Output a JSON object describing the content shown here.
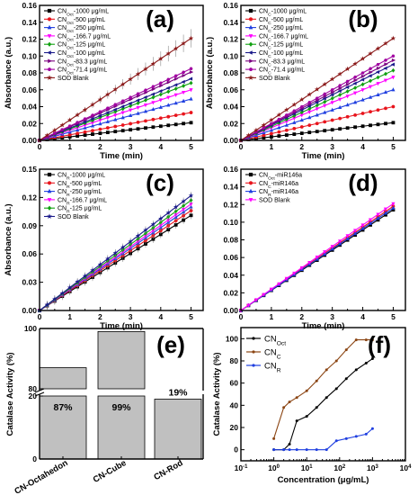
{
  "chart_data": [
    {
      "panel": "(a)",
      "type": "line",
      "xlabel": "Time (min)",
      "ylabel": "Absorbance (a.u.)",
      "xlim": [
        0,
        5.4
      ],
      "ylim": [
        0,
        0.16
      ],
      "xticks": [
        "0",
        "1",
        "2",
        "3",
        "4",
        "5"
      ],
      "yticks": [
        "0.00",
        "0.02",
        "0.04",
        "0.06",
        "0.08",
        "0.10",
        "0.12",
        "0.14",
        "0.16"
      ],
      "x_step": 0.25,
      "legend_position": "top-left",
      "series": [
        {
          "name": "CN",
          "name_sub": "Oct",
          "name_rest": "-1000 μg/mL",
          "marker": "square",
          "color": "#000000",
          "end": 0.021
        },
        {
          "name": "CN",
          "name_sub": "Oct",
          "name_rest": "-500 μg/mL",
          "marker": "circle",
          "color": "#e8141c",
          "end": 0.033
        },
        {
          "name": "CN",
          "name_sub": "Oct",
          "name_rest": "-250 μg/mL",
          "marker": "triangle",
          "color": "#1f3fe0",
          "end": 0.049
        },
        {
          "name": "CN",
          "name_sub": "Oct",
          "name_rest": "-166.7 μg/mL",
          "marker": "tri-down",
          "color": "#ff00ff",
          "end": 0.06
        },
        {
          "name": "CN",
          "name_sub": "Oct",
          "name_rest": "-125 μg/mL",
          "marker": "diamond",
          "color": "#10a010",
          "end": 0.068
        },
        {
          "name": "CN",
          "name_sub": "Oct",
          "name_rest": "-100 μg/mL",
          "marker": "tri-left",
          "color": "#1a1a8a",
          "end": 0.073
        },
        {
          "name": "CN",
          "name_sub": "Oct",
          "name_rest": "-83.3 μg/mL",
          "marker": "tri-right",
          "color": "#7a0080",
          "end": 0.081
        },
        {
          "name": "CN",
          "name_sub": "Oct",
          "name_rest": "-71.4 μg/mL",
          "marker": "hexagon",
          "color": "#a000a0",
          "end": 0.085
        },
        {
          "name": "SOD Blank",
          "marker": "star",
          "color": "#8b1a1a",
          "end": 0.121
        }
      ]
    },
    {
      "panel": "(b)",
      "type": "line",
      "xlabel": "Time (min)",
      "ylabel": "Absorbance (a.u.)",
      "xlim": [
        0,
        5.4
      ],
      "ylim": [
        0,
        0.16
      ],
      "xticks": [
        "0",
        "1",
        "2",
        "3",
        "4",
        "5"
      ],
      "yticks": [
        "0.00",
        "0.02",
        "0.04",
        "0.06",
        "0.08",
        "0.10",
        "0.12",
        "0.14",
        "0.16"
      ],
      "x_step": 0.25,
      "legend_position": "top-left",
      "series": [
        {
          "name": "CN",
          "name_sub": "C",
          "name_rest": "-1000 μg/mL",
          "marker": "square",
          "color": "#000000",
          "end": 0.021
        },
        {
          "name": "CN",
          "name_sub": "C",
          "name_rest": "-500 μg/mL",
          "marker": "circle",
          "color": "#e8141c",
          "end": 0.04
        },
        {
          "name": "CN",
          "name_sub": "C",
          "name_rest": "-250 μg/mL",
          "marker": "triangle",
          "color": "#1f3fe0",
          "end": 0.06
        },
        {
          "name": "CN",
          "name_sub": "C",
          "name_rest": "-166.7 μg/mL",
          "marker": "tri-down",
          "color": "#ff00ff",
          "end": 0.075
        },
        {
          "name": "CN",
          "name_sub": "C",
          "name_rest": "-125 μg/mL",
          "marker": "diamond",
          "color": "#10a010",
          "end": 0.083
        },
        {
          "name": "CN",
          "name_sub": "C",
          "name_rest": "-100 μg/mL",
          "marker": "tri-left",
          "color": "#1a1a8a",
          "end": 0.09
        },
        {
          "name": "CN",
          "name_sub": "C",
          "name_rest": "-83.3 μg/mL",
          "marker": "tri-right",
          "color": "#7a0080",
          "end": 0.095
        },
        {
          "name": "CN",
          "name_sub": "C",
          "name_rest": "-71.4 μg/mL",
          "marker": "hexagon",
          "color": "#a000a0",
          "end": 0.1
        },
        {
          "name": "SOD Blank",
          "marker": "star",
          "color": "#8b1a1a",
          "end": 0.121
        }
      ]
    },
    {
      "panel": "(c)",
      "type": "line",
      "xlabel": "Time (min)",
      "ylabel": "Absorbance (a.u.)",
      "xlim": [
        0,
        5.4
      ],
      "ylim": [
        0,
        0.15
      ],
      "xticks": [
        "0",
        "1",
        "2",
        "3",
        "4",
        "5"
      ],
      "yticks": [
        "0.00",
        "0.03",
        "0.06",
        "0.09",
        "0.12",
        "0.15"
      ],
      "x_step": 0.25,
      "legend_position": "top-left",
      "series": [
        {
          "name": "CN",
          "name_sub": "R",
          "name_rest": "-1000 μg/mL",
          "marker": "square",
          "color": "#000000",
          "end": 0.101
        },
        {
          "name": "CN",
          "name_sub": "R",
          "name_rest": "-500 μg/mL",
          "marker": "circle",
          "color": "#e8141c",
          "end": 0.106
        },
        {
          "name": "CN",
          "name_sub": "R",
          "name_rest": "-250 μg/mL",
          "marker": "triangle",
          "color": "#1f3fe0",
          "end": 0.11
        },
        {
          "name": "CN",
          "name_sub": "R",
          "name_rest": "-166.7 μg/mL",
          "marker": "tri-down",
          "color": "#ff00ff",
          "end": 0.113
        },
        {
          "name": "CN",
          "name_sub": "R",
          "name_rest": "-125 μg/mL",
          "marker": "diamond",
          "color": "#10a010",
          "end": 0.117
        },
        {
          "name": "SOD Blank",
          "marker": "star",
          "color": "#1a1a8a",
          "end": 0.122
        }
      ]
    },
    {
      "panel": "(d)",
      "type": "line",
      "xlabel": "Time (min)",
      "ylabel": "",
      "xlim": [
        0,
        5.4
      ],
      "ylim": [
        0,
        0.16
      ],
      "xticks": [
        "0",
        "1",
        "2",
        "3",
        "4",
        "5"
      ],
      "yticks": [
        "0.00",
        "0.02",
        "0.04",
        "0.06",
        "0.08",
        "0.10",
        "0.12",
        "0.14",
        "0.16"
      ],
      "x_step": 0.25,
      "legend_position": "top-left",
      "series": [
        {
          "name": "CN",
          "name_sub": "Oct",
          "name_rest": "-miR146a",
          "marker": "square",
          "color": "#000000",
          "end": 0.114
        },
        {
          "name": "CN",
          "name_sub": "C",
          "name_rest": "-miR146a",
          "marker": "circle",
          "color": "#e8141c",
          "end": 0.118
        },
        {
          "name": "CN",
          "name_sub": "R",
          "name_rest": "-miR146a",
          "marker": "triangle",
          "color": "#1f3fe0",
          "end": 0.116
        },
        {
          "name": "SOD Blank",
          "marker": "tri-down",
          "color": "#ff00ff",
          "end": 0.121
        }
      ]
    },
    {
      "panel": "(e)",
      "type": "bar",
      "ylabel": "Catalase Activity (%)",
      "categories": [
        "CN-Octahedon",
        "CN-Cube",
        "CN-Rod"
      ],
      "values": [
        87,
        99,
        19
      ],
      "value_labels": [
        "87%",
        "99%",
        "19%"
      ],
      "ylim_upper": [
        80,
        100
      ],
      "ylim_lower": [
        0,
        20
      ],
      "yticks_upper": [
        "80",
        "100"
      ],
      "yticks_lower": [
        "0",
        "20"
      ],
      "axis_break": true,
      "bar_color": "#c0c0c0"
    },
    {
      "panel": "(f)",
      "type": "line",
      "xlabel": "Concentration (μg/mL)",
      "ylabel": "Catalase Activity (%)",
      "xscale": "log",
      "xlim": [
        0.1,
        10000
      ],
      "ylim": [
        -10,
        110
      ],
      "xticks": [
        {
          "b": "10",
          "e": "-1"
        },
        {
          "b": "10",
          "e": "0"
        },
        {
          "b": "10",
          "e": "1"
        },
        {
          "b": "10",
          "e": "2"
        },
        {
          "b": "10",
          "e": "3"
        },
        {
          "b": "10",
          "e": "4"
        }
      ],
      "yticks": [
        "0",
        "20",
        "40",
        "60",
        "80",
        "100"
      ],
      "legend_position": "top-left",
      "series": [
        {
          "name": "CN",
          "name_sub": "Oct",
          "color": "#000000",
          "x": [
            1,
            2,
            3,
            5,
            10,
            20,
            40,
            80,
            160,
            320,
            640,
            1000
          ],
          "y": [
            0,
            0,
            5,
            26,
            30,
            38,
            47,
            55,
            64,
            72,
            78,
            82
          ]
        },
        {
          "name": "CN",
          "name_sub": "C",
          "color": "#8b4513",
          "x": [
            1,
            2,
            3,
            5,
            10,
            20,
            40,
            80,
            160,
            320,
            640,
            1000
          ],
          "y": [
            10,
            38,
            43,
            47,
            53,
            62,
            72,
            80,
            90,
            99,
            99,
            99
          ]
        },
        {
          "name": "CN",
          "name_sub": "R",
          "color": "#1f3fe0",
          "x": [
            1,
            2,
            3,
            5,
            10,
            20,
            40,
            80,
            160,
            320,
            640,
            1000
          ],
          "y": [
            0,
            0,
            0,
            0,
            0,
            0,
            0,
            8,
            10,
            12,
            14,
            19
          ]
        }
      ]
    }
  ]
}
